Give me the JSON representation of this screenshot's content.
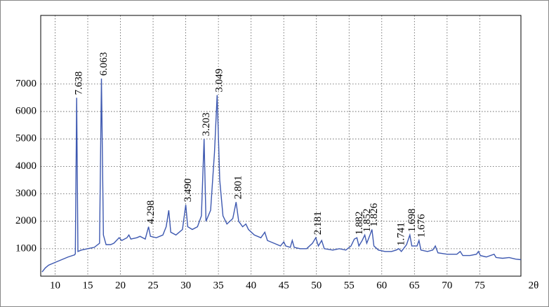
{
  "chart_data": {
    "type": "line",
    "x_label": "2θ",
    "xlim": [
      7.8,
      81.3
    ],
    "ylim": [
      0,
      9500
    ],
    "xticks": [
      10,
      15,
      20,
      25,
      30,
      35,
      40,
      45,
      50,
      55,
      60,
      65,
      70,
      75
    ],
    "yticks": [
      1000,
      2000,
      3000,
      4000,
      5000,
      6000,
      7000
    ],
    "grid": true,
    "series": [
      {
        "color": "#3d58b0",
        "x": [
          8.0,
          8.5,
          9,
          10,
          11,
          12,
          13,
          13.1,
          13.3,
          13.5,
          14,
          15,
          16,
          16.8,
          17.1,
          17.4,
          17.8,
          18.5,
          19,
          19.8,
          20.2,
          21,
          21.3,
          21.6,
          22.5,
          23,
          23.8,
          24.3,
          24.6,
          25.5,
          26.5,
          27,
          27.4,
          27.7,
          28.5,
          29.5,
          30.0,
          30.3,
          31,
          31.8,
          32.4,
          32.8,
          33.1,
          33.8,
          34.4,
          34.8,
          35.2,
          35.7,
          36.3,
          37.2,
          37.7,
          38.1,
          38.7,
          39.2,
          39.6,
          40.5,
          41.5,
          42.1,
          42.5,
          43.5,
          44.5,
          45,
          45.3,
          46,
          46.3,
          46.6,
          47.5,
          48.5,
          49.4,
          49.9,
          50.3,
          50.8,
          51.2,
          52.5,
          53.5,
          54.5,
          55.3,
          55.8,
          56.2,
          56.5,
          57.0,
          57.4,
          57.7,
          58.2,
          58.5,
          58.8,
          59.5,
          60.5,
          61.5,
          62.2,
          62.6,
          63,
          63.8,
          64.3,
          64.6,
          65.4,
          65.7,
          66,
          67,
          67.8,
          68.2,
          68.6,
          70,
          71.5,
          72,
          72.4,
          73.5,
          74.5,
          74.8,
          75.1,
          76,
          77.2,
          77.5,
          78.5,
          79.5,
          80.5,
          81.3
        ],
        "values": [
          150,
          300,
          400,
          500,
          600,
          700,
          780,
          820,
          6500,
          900,
          950,
          1000,
          1050,
          1200,
          7200,
          1500,
          1150,
          1150,
          1200,
          1400,
          1300,
          1400,
          1500,
          1350,
          1400,
          1450,
          1350,
          1800,
          1450,
          1400,
          1500,
          1800,
          2400,
          1600,
          1500,
          1700,
          2600,
          1800,
          1700,
          1800,
          2200,
          5000,
          2000,
          2400,
          4500,
          6600,
          3500,
          2200,
          1900,
          2100,
          2700,
          2000,
          1800,
          1900,
          1700,
          1500,
          1400,
          1600,
          1300,
          1200,
          1100,
          1250,
          1100,
          1050,
          1300,
          1050,
          1000,
          1000,
          1200,
          1400,
          1100,
          1300,
          1000,
          950,
          1000,
          950,
          1100,
          1350,
          1400,
          1100,
          1300,
          1500,
          1200,
          1500,
          1700,
          1100,
          950,
          900,
          900,
          950,
          1000,
          900,
          1150,
          1500,
          1100,
          1100,
          1300,
          950,
          900,
          950,
          1100,
          850,
          800,
          800,
          900,
          750,
          750,
          800,
          900,
          750,
          700,
          800,
          680,
          650,
          680,
          620,
          600
        ]
      }
    ],
    "annotations": [
      {
        "text": "7.638",
        "x": 13.3
      },
      {
        "text": "6.063",
        "x": 17.1
      },
      {
        "text": "4.298",
        "x": 24.3
      },
      {
        "text": "3.490",
        "x": 30.0
      },
      {
        "text": "3.203",
        "x": 32.8
      },
      {
        "text": "3.049",
        "x": 34.8
      },
      {
        "text": "2.801",
        "x": 37.7
      },
      {
        "text": "2.181",
        "x": 49.9
      },
      {
        "text": "1.882",
        "x": 56.2
      },
      {
        "text": "1.852",
        "x": 57.4
      },
      {
        "text": "1.826",
        "x": 58.5
      },
      {
        "text": "1.741",
        "x": 62.6
      },
      {
        "text": "1.698",
        "x": 64.3
      },
      {
        "text": "1.676",
        "x": 65.7
      }
    ]
  }
}
